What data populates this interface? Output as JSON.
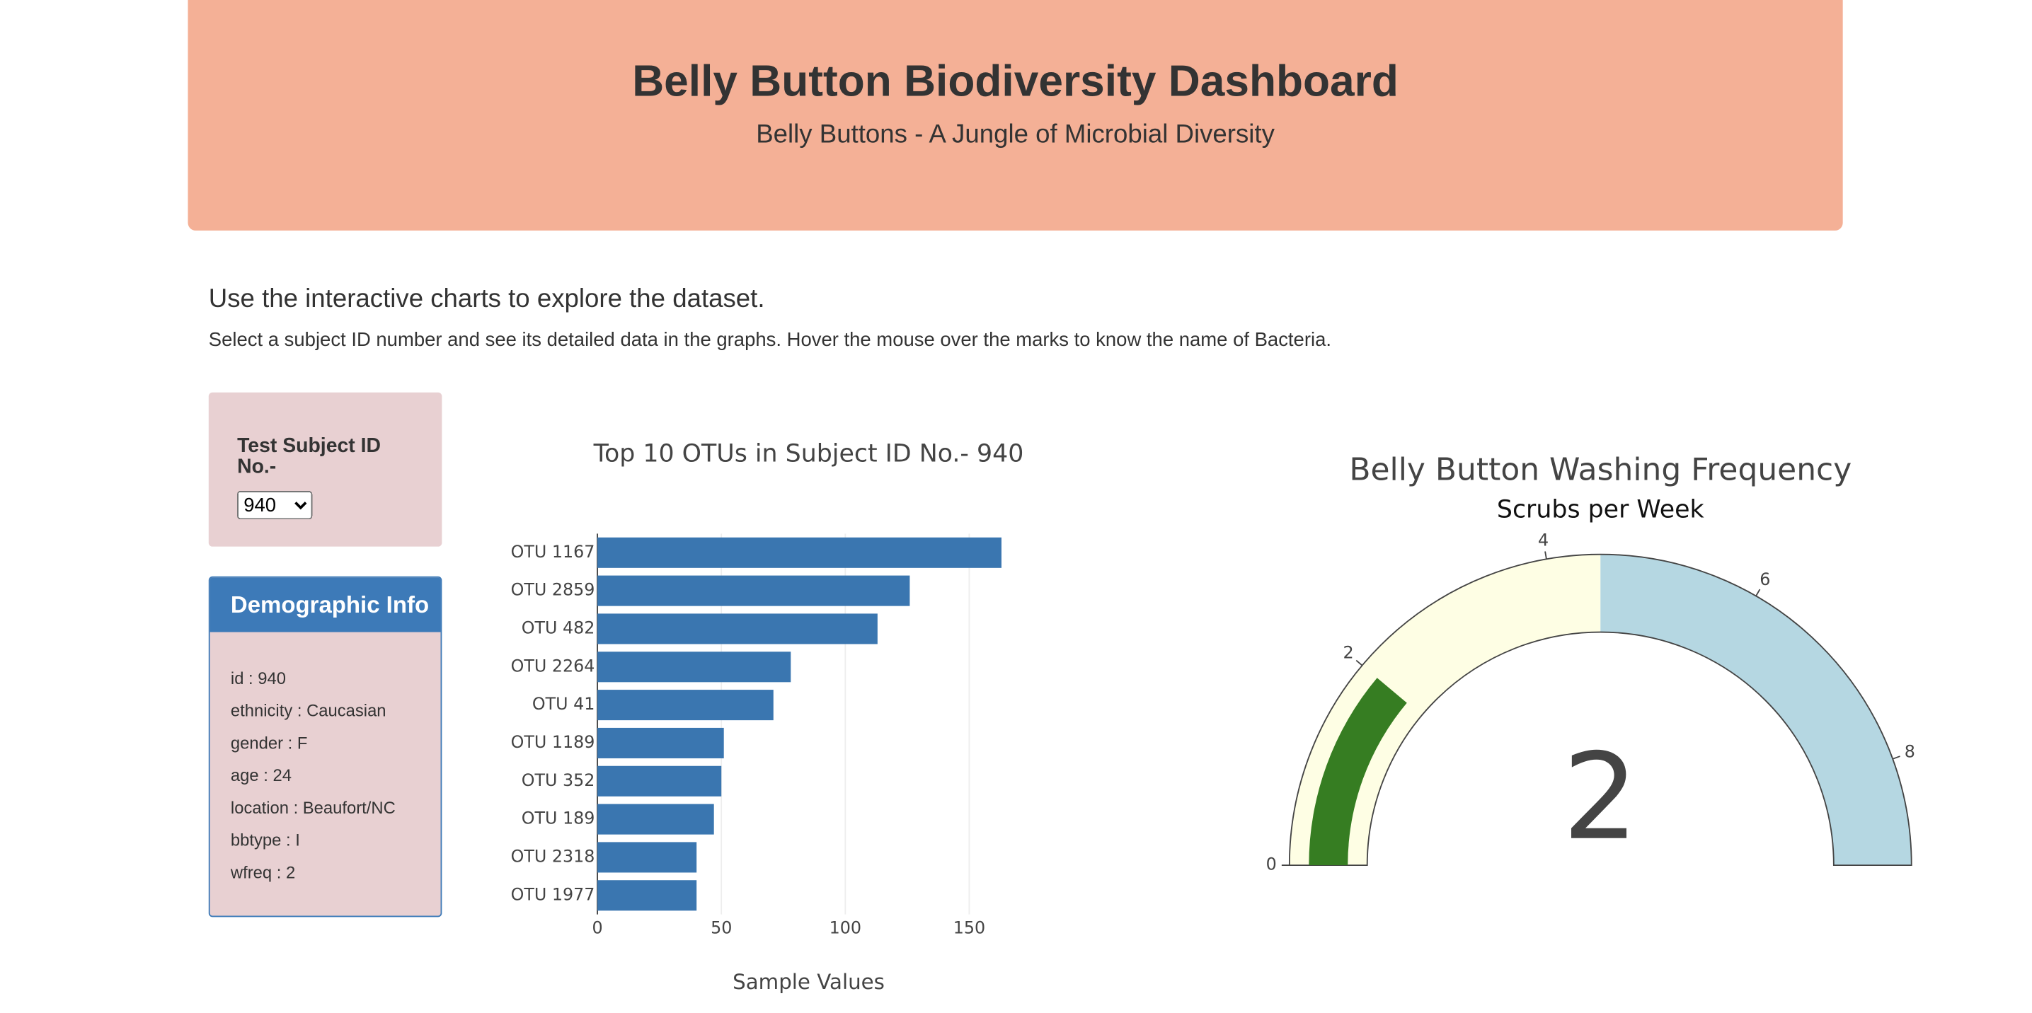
{
  "header": {
    "title": "Belly Button Biodiversity Dashboard",
    "subtitle": "Belly Buttons - A Jungle of Microbial Diversity"
  },
  "intro": {
    "heading": "Use the interactive charts to explore the dataset.",
    "text": "Select a subject ID number and see its detailed data in the graphs. Hover the mouse over the marks to know the name of Bacteria."
  },
  "selector": {
    "label": "Test Subject ID No.-",
    "selected": "940"
  },
  "demographic": {
    "title": "Demographic Info",
    "items": [
      "id : 940",
      "ethnicity : Caucasian",
      "gender : F",
      "age : 24",
      "location : Beaufort/NC",
      "bbtype : I",
      "wfreq : 2"
    ]
  },
  "chart_data": [
    {
      "type": "bar",
      "orientation": "horizontal",
      "title": "Top 10 OTUs in Subject ID No.- 940",
      "categories": [
        "OTU 1167",
        "OTU 2859",
        "OTU 482",
        "OTU 2264",
        "OTU 41",
        "OTU 1189",
        "OTU 352",
        "OTU 189",
        "OTU 2318",
        "OTU 1977"
      ],
      "values": [
        163,
        126,
        113,
        78,
        71,
        51,
        50,
        47,
        40,
        40
      ],
      "color": "#3a76b0",
      "xlim": [
        0,
        172
      ],
      "xticks": [
        0,
        50,
        100,
        150
      ],
      "xlabel": "Sample Values",
      "grid": true
    },
    {
      "type": "gauge",
      "title": "Belly Button Washing Frequency",
      "subtitle": "Scrubs per Week",
      "value": 2,
      "range": [
        0,
        9
      ],
      "ticks": [
        0,
        2,
        4,
        6,
        8
      ],
      "bar_color": "#367d22",
      "steps": [
        {
          "range": [
            0,
            4.5
          ],
          "color": "#fefee4"
        },
        {
          "range": [
            4.5,
            9
          ],
          "color": "#b5d7e2"
        }
      ]
    }
  ]
}
